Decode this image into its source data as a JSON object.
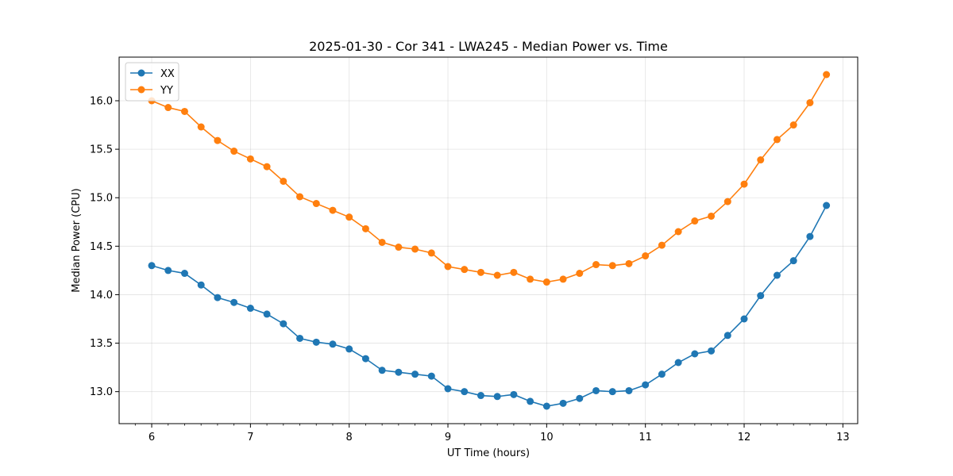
{
  "chart_data": {
    "type": "line",
    "title": "2025-01-30 - Cor 341 - LWA245 - Median Power vs. Time",
    "xlabel": "UT Time (hours)",
    "ylabel": "Median Power (CPU)",
    "xlim": [
      5.67,
      13.15
    ],
    "ylim": [
      12.67,
      16.45
    ],
    "xticks": [
      6,
      7,
      8,
      9,
      10,
      11,
      12,
      13
    ],
    "xtick_labels": [
      "6",
      "7",
      "8",
      "9",
      "10",
      "11",
      "12",
      "13"
    ],
    "yticks": [
      13.0,
      13.5,
      14.0,
      14.5,
      15.0,
      15.5,
      16.0
    ],
    "ytick_labels": [
      "13.0",
      "13.5",
      "14.0",
      "14.5",
      "15.0",
      "15.5",
      "16.0"
    ],
    "grid": true,
    "legend_position": "top-left",
    "x": [
      6.0,
      6.1667,
      6.3333,
      6.5,
      6.6667,
      6.8333,
      7.0,
      7.1667,
      7.3333,
      7.5,
      7.6667,
      7.8333,
      8.0,
      8.1667,
      8.3333,
      8.5,
      8.6667,
      8.8333,
      9.0,
      9.1667,
      9.3333,
      9.5,
      9.6667,
      9.8333,
      10.0,
      10.1667,
      10.3333,
      10.5,
      10.6667,
      10.8333,
      11.0,
      11.1667,
      11.3333,
      11.5,
      11.6667,
      11.8333,
      12.0,
      12.1667,
      12.3333,
      12.5,
      12.6667,
      12.8333
    ],
    "series": [
      {
        "name": "XX",
        "color": "#1f77b4",
        "values": [
          14.3,
          14.25,
          14.22,
          14.1,
          13.97,
          13.92,
          13.86,
          13.8,
          13.7,
          13.55,
          13.51,
          13.49,
          13.44,
          13.34,
          13.22,
          13.2,
          13.18,
          13.16,
          13.03,
          13.0,
          12.96,
          12.95,
          12.97,
          12.9,
          12.85,
          12.88,
          12.93,
          13.01,
          13.0,
          13.01,
          13.07,
          13.18,
          13.3,
          13.39,
          13.42,
          13.58,
          13.75,
          13.99,
          14.2,
          14.35,
          14.6,
          14.92
        ]
      },
      {
        "name": "YY",
        "color": "#ff7f0e",
        "values": [
          16.0,
          15.93,
          15.89,
          15.73,
          15.59,
          15.48,
          15.4,
          15.32,
          15.17,
          15.01,
          14.94,
          14.87,
          14.8,
          14.68,
          14.54,
          14.49,
          14.47,
          14.43,
          14.29,
          14.26,
          14.23,
          14.2,
          14.23,
          14.16,
          14.13,
          14.16,
          14.22,
          14.31,
          14.3,
          14.32,
          14.4,
          14.51,
          14.65,
          14.76,
          14.81,
          14.96,
          15.14,
          15.39,
          15.6,
          15.75,
          15.98,
          16.27
        ]
      }
    ]
  }
}
